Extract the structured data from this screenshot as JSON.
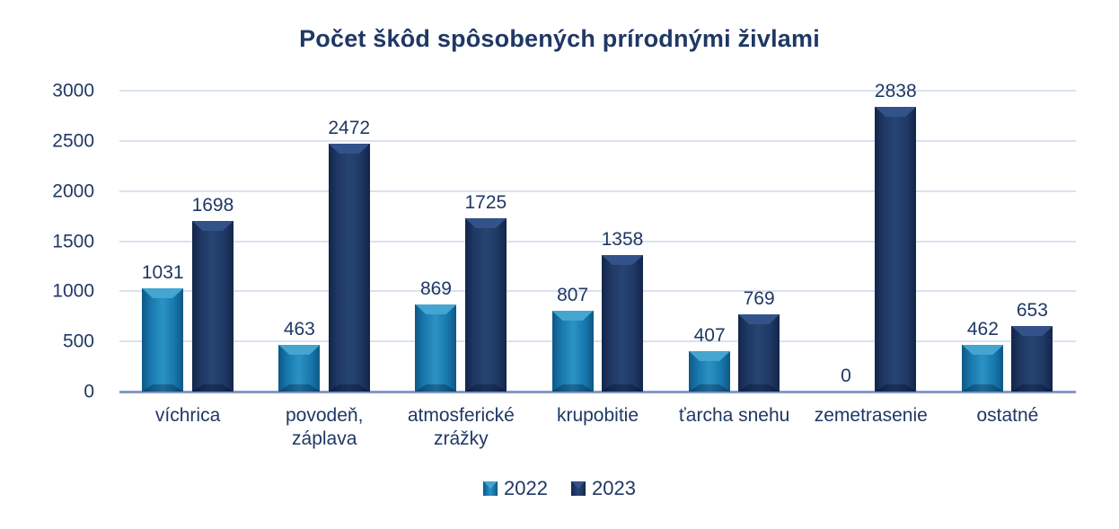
{
  "chart_data": {
    "type": "bar",
    "title": "Počet škôd spôsobených prírodnými živlami",
    "categories": [
      "víchrica",
      "povodeň,\nzáplava",
      "atmosferické\nzrážky",
      "krupobitie",
      "ťarcha snehu",
      "zemetrasenie",
      "ostatné"
    ],
    "series": [
      {
        "name": "2022",
        "values": [
          1031,
          463,
          869,
          807,
          407,
          0,
          462
        ],
        "color": "#1878AE",
        "color_light": "#45A5D0",
        "color_mid": "#2B92C3",
        "color_dark": "#0E5884"
      },
      {
        "name": "2023",
        "values": [
          1698,
          2472,
          1725,
          1358,
          769,
          2838,
          653
        ],
        "color": "#1F3864",
        "color_light": "#33528A",
        "color_mid": "#264473",
        "color_dark": "#13254A"
      }
    ],
    "xlabel": "",
    "ylabel": "",
    "ylim": [
      0,
      3000
    ],
    "yticks": [
      0,
      500,
      1000,
      1500,
      2000,
      2500,
      3000
    ],
    "grid": true,
    "data_labels": true,
    "legend_position": "bottom",
    "text_color": "#1F3864",
    "gridline_color": "#D9E2F0",
    "axis_line_color": "#8399C6"
  }
}
